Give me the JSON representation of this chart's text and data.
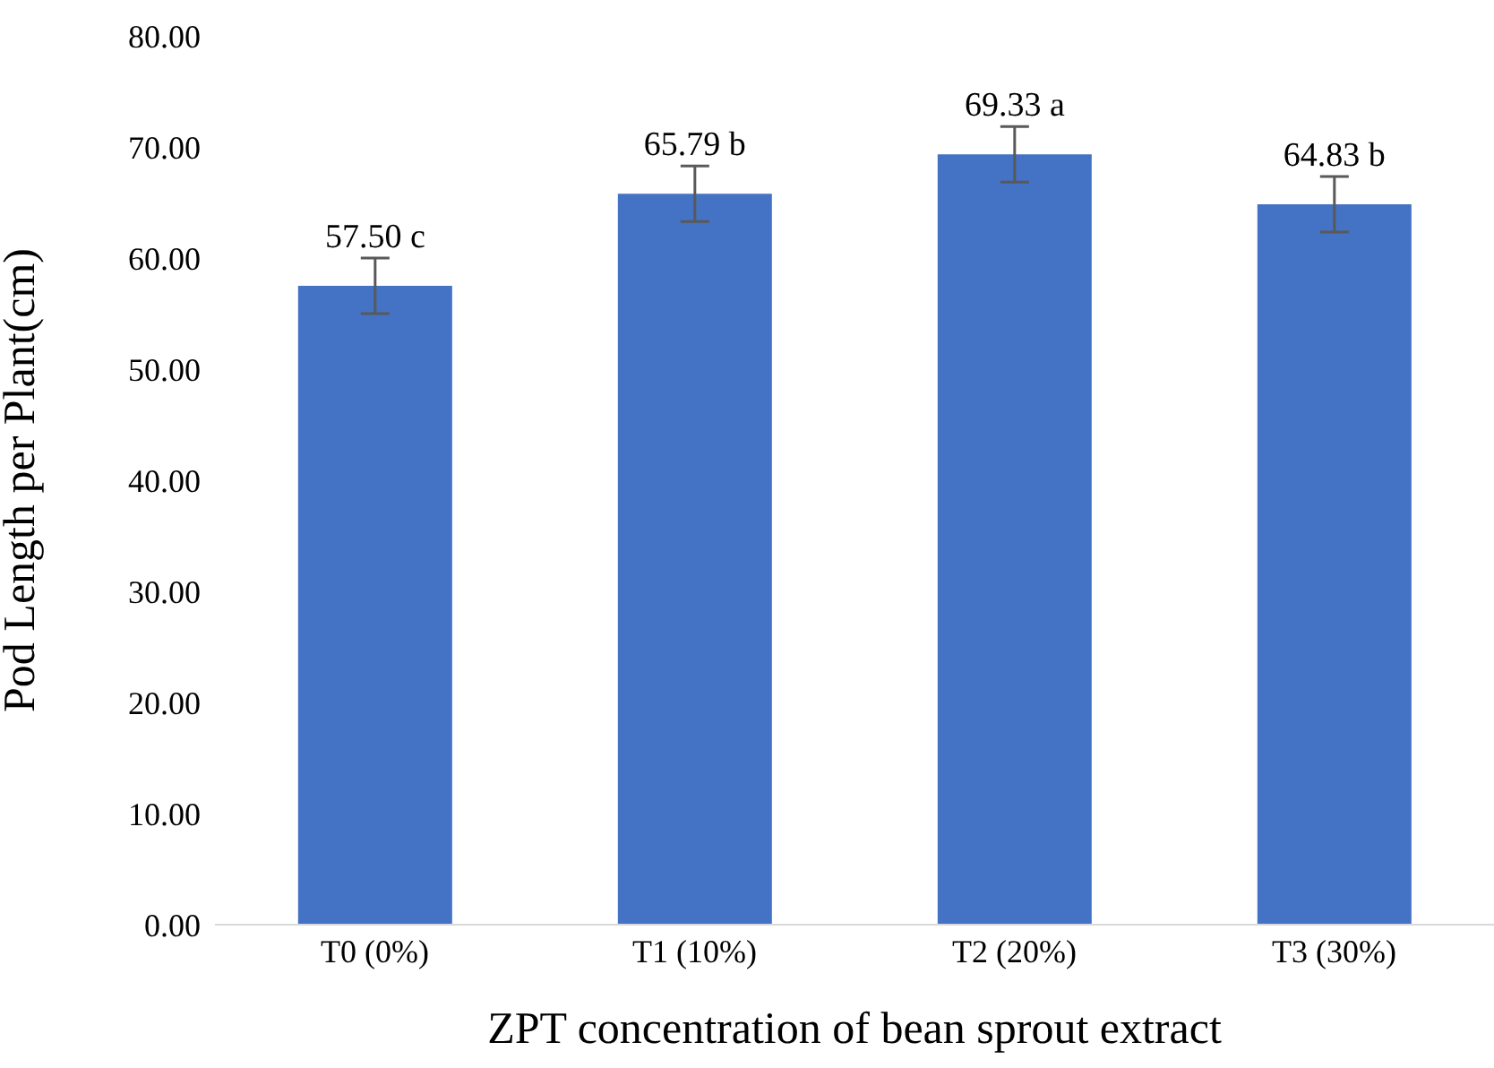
{
  "chart_data": {
    "type": "bar",
    "xlabel": "ZPT concentration of bean sprout extract",
    "ylabel": "Pod Length per Plant(cm)",
    "categories": [
      "T0 (0%)",
      "T1 (10%)",
      "T2 (20%)",
      "T3 (30%)"
    ],
    "values": [
      57.5,
      65.79,
      69.33,
      64.83
    ],
    "value_labels": [
      "57.50 c",
      "65.79 b",
      "69.33 a",
      "64.83 b"
    ],
    "errors": [
      2.5,
      2.5,
      2.5,
      2.5
    ],
    "color": "#4472c4",
    "ylim": [
      0,
      80
    ],
    "yticks": [
      {
        "value": 0,
        "label": "0.00"
      },
      {
        "value": 10,
        "label": "10.00"
      },
      {
        "value": 20,
        "label": "20.00"
      },
      {
        "value": 30,
        "label": "30.00"
      },
      {
        "value": 40,
        "label": "40.00"
      },
      {
        "value": 50,
        "label": "50.00"
      },
      {
        "value": 60,
        "label": "60.00"
      },
      {
        "value": 70,
        "label": "70.00"
      },
      {
        "value": 80,
        "label": "80.00"
      }
    ],
    "grid": false,
    "legend": false
  }
}
